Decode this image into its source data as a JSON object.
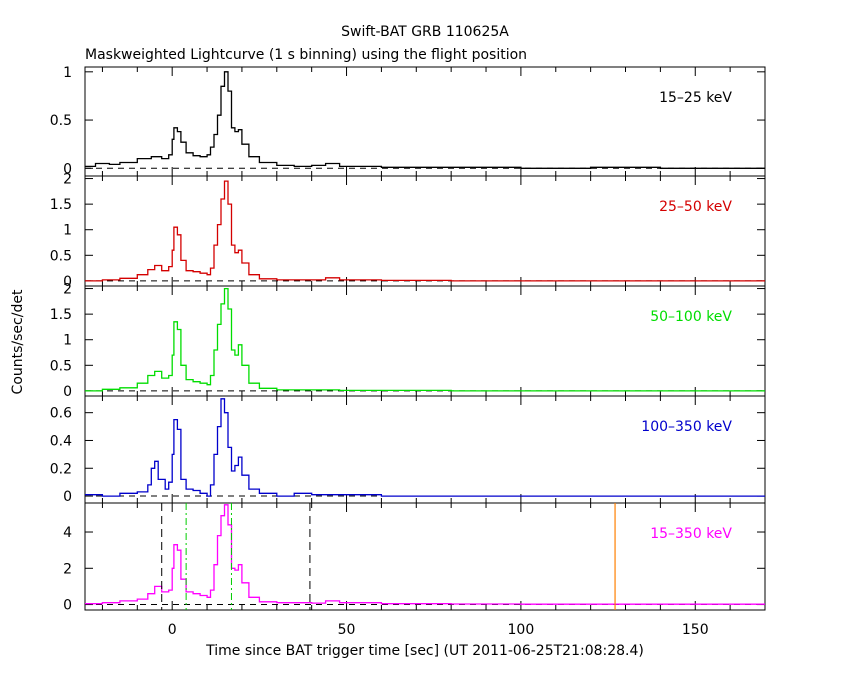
{
  "figure": {
    "title": "Swift-BAT GRB 110625A",
    "subtitle": "Maskweighted Lightcurve (1 s binning) using the flight position",
    "ylabel": "Counts/sec/det",
    "xlabel": "Time since BAT trigger time [sec] (UT 2011-06-25T21:08:28.4)"
  },
  "chart_data": {
    "type": "line",
    "x_range": [
      -25,
      170
    ],
    "x_ticks": [
      0,
      50,
      100,
      150
    ],
    "panels": [
      {
        "label": "15–25 keV",
        "color": "#000000",
        "ylim": [
          -0.08,
          1.05
        ],
        "y_ticks": [
          0,
          0.5,
          1
        ],
        "y_tick_labels": [
          "0",
          "0.5",
          "1"
        ],
        "series": {
          "points": [
            [
              -25,
              0.02
            ],
            [
              -22,
              0.05
            ],
            [
              -18,
              0.04
            ],
            [
              -15,
              0.06
            ],
            [
              -10,
              0.1
            ],
            [
              -6,
              0.12
            ],
            [
              -3,
              0.1
            ],
            [
              -1,
              0.14
            ],
            [
              0,
              0.3
            ],
            [
              0.5,
              0.42
            ],
            [
              1.5,
              0.38
            ],
            [
              2.5,
              0.27
            ],
            [
              4,
              0.16
            ],
            [
              6,
              0.13
            ],
            [
              8,
              0.12
            ],
            [
              10,
              0.14
            ],
            [
              11,
              0.22
            ],
            [
              12,
              0.35
            ],
            [
              13,
              0.55
            ],
            [
              14,
              0.85
            ],
            [
              15,
              1.0
            ],
            [
              16,
              0.8
            ],
            [
              17,
              0.42
            ],
            [
              18,
              0.38
            ],
            [
              19,
              0.4
            ],
            [
              20,
              0.25
            ],
            [
              22,
              0.12
            ],
            [
              25,
              0.06
            ],
            [
              30,
              0.03
            ],
            [
              35,
              0.02
            ],
            [
              40,
              0.03
            ],
            [
              44,
              0.05
            ],
            [
              48,
              0.02
            ],
            [
              60,
              0.01
            ],
            [
              80,
              0.01
            ],
            [
              100,
              0.0
            ],
            [
              120,
              0.01
            ],
            [
              140,
              0.0
            ],
            [
              170,
              0.0
            ]
          ]
        }
      },
      {
        "label": "25–50 keV",
        "color": "#d40000",
        "ylim": [
          -0.1,
          2.05
        ],
        "y_ticks": [
          0,
          0.5,
          1,
          1.5,
          2
        ],
        "y_tick_labels": [
          "0",
          "0.5",
          "1",
          "1.5",
          "2"
        ],
        "series": {
          "points": [
            [
              -25,
              0.0
            ],
            [
              -20,
              0.02
            ],
            [
              -15,
              0.05
            ],
            [
              -10,
              0.12
            ],
            [
              -7,
              0.22
            ],
            [
              -5,
              0.3
            ],
            [
              -3,
              0.2
            ],
            [
              -1,
              0.28
            ],
            [
              0,
              0.6
            ],
            [
              0.5,
              1.05
            ],
            [
              1.5,
              0.9
            ],
            [
              2.5,
              0.4
            ],
            [
              4,
              0.2
            ],
            [
              6,
              0.18
            ],
            [
              8,
              0.15
            ],
            [
              10,
              0.12
            ],
            [
              11,
              0.25
            ],
            [
              12,
              0.7
            ],
            [
              13,
              1.1
            ],
            [
              14,
              1.6
            ],
            [
              15,
              1.95
            ],
            [
              16,
              1.5
            ],
            [
              17,
              0.7
            ],
            [
              18,
              0.55
            ],
            [
              19,
              0.6
            ],
            [
              20,
              0.35
            ],
            [
              22,
              0.12
            ],
            [
              25,
              0.04
            ],
            [
              30,
              0.02
            ],
            [
              40,
              0.02
            ],
            [
              44,
              0.06
            ],
            [
              48,
              0.02
            ],
            [
              60,
              0.01
            ],
            [
              80,
              0.0
            ],
            [
              100,
              0.0
            ],
            [
              120,
              0.0
            ],
            [
              140,
              0.0
            ],
            [
              170,
              0.0
            ]
          ]
        }
      },
      {
        "label": "50–100 keV",
        "color": "#00dd00",
        "ylim": [
          -0.1,
          2.05
        ],
        "y_ticks": [
          0,
          0.5,
          1,
          1.5,
          2
        ],
        "y_tick_labels": [
          "0",
          "0.5",
          "1",
          "1.5",
          "2"
        ],
        "series": {
          "points": [
            [
              -25,
              0.0
            ],
            [
              -20,
              0.03
            ],
            [
              -15,
              0.06
            ],
            [
              -10,
              0.15
            ],
            [
              -7,
              0.3
            ],
            [
              -5,
              0.38
            ],
            [
              -3,
              0.25
            ],
            [
              -1,
              0.3
            ],
            [
              0,
              0.7
            ],
            [
              0.5,
              1.35
            ],
            [
              1.5,
              1.2
            ],
            [
              2.5,
              0.5
            ],
            [
              4,
              0.22
            ],
            [
              6,
              0.18
            ],
            [
              8,
              0.15
            ],
            [
              10,
              0.12
            ],
            [
              11,
              0.3
            ],
            [
              12,
              0.8
            ],
            [
              13,
              1.3
            ],
            [
              14,
              1.7
            ],
            [
              15,
              2.0
            ],
            [
              16,
              1.6
            ],
            [
              17,
              0.8
            ],
            [
              18,
              0.7
            ],
            [
              19,
              0.9
            ],
            [
              20,
              0.5
            ],
            [
              22,
              0.15
            ],
            [
              25,
              0.05
            ],
            [
              30,
              0.02
            ],
            [
              40,
              0.02
            ],
            [
              48,
              0.01
            ],
            [
              60,
              0.01
            ],
            [
              80,
              0.0
            ],
            [
              100,
              0.0
            ],
            [
              120,
              0.0
            ],
            [
              140,
              0.0
            ],
            [
              170,
              0.0
            ]
          ]
        }
      },
      {
        "label": "100–350 keV",
        "color": "#0000cc",
        "ylim": [
          -0.05,
          0.72
        ],
        "y_ticks": [
          0,
          0.2,
          0.4,
          0.6
        ],
        "y_tick_labels": [
          "0",
          "0.2",
          "0.4",
          "0.6"
        ],
        "series": {
          "points": [
            [
              -25,
              0.01
            ],
            [
              -20,
              0.0
            ],
            [
              -15,
              0.02
            ],
            [
              -10,
              0.03
            ],
            [
              -7,
              0.08
            ],
            [
              -6,
              0.2
            ],
            [
              -5,
              0.25
            ],
            [
              -4,
              0.12
            ],
            [
              -2,
              0.05
            ],
            [
              -1,
              0.1
            ],
            [
              0,
              0.3
            ],
            [
              0.5,
              0.55
            ],
            [
              1.5,
              0.48
            ],
            [
              2.5,
              0.12
            ],
            [
              4,
              0.05
            ],
            [
              6,
              0.04
            ],
            [
              8,
              0.02
            ],
            [
              10,
              0.0
            ],
            [
              11,
              0.08
            ],
            [
              12,
              0.3
            ],
            [
              13,
              0.5
            ],
            [
              14,
              0.7
            ],
            [
              15,
              0.6
            ],
            [
              16,
              0.35
            ],
            [
              17,
              0.18
            ],
            [
              18,
              0.22
            ],
            [
              19,
              0.28
            ],
            [
              20,
              0.15
            ],
            [
              22,
              0.05
            ],
            [
              25,
              0.02
            ],
            [
              30,
              0.0
            ],
            [
              35,
              0.02
            ],
            [
              40,
              0.01
            ],
            [
              50,
              0.01
            ],
            [
              60,
              0.0
            ],
            [
              80,
              0.0
            ],
            [
              100,
              0.0
            ],
            [
              120,
              0.0
            ],
            [
              140,
              0.0
            ],
            [
              170,
              0.0
            ]
          ]
        }
      },
      {
        "label": "15–350 keV",
        "color": "#ff00ff",
        "ylim": [
          -0.3,
          5.6
        ],
        "y_ticks": [
          0,
          2,
          4
        ],
        "y_tick_labels": [
          "0",
          "2",
          "4"
        ],
        "series": {
          "points": [
            [
              -25,
              0.05
            ],
            [
              -20,
              0.1
            ],
            [
              -15,
              0.2
            ],
            [
              -10,
              0.3
            ],
            [
              -7,
              0.6
            ],
            [
              -5,
              1.0
            ],
            [
              -3,
              0.7
            ],
            [
              -1,
              0.8
            ],
            [
              0,
              2.0
            ],
            [
              0.5,
              3.3
            ],
            [
              1.5,
              3.0
            ],
            [
              2.5,
              1.4
            ],
            [
              4,
              0.7
            ],
            [
              6,
              0.6
            ],
            [
              8,
              0.5
            ],
            [
              10,
              0.4
            ],
            [
              11,
              0.8
            ],
            [
              12,
              2.2
            ],
            [
              13,
              3.8
            ],
            [
              14,
              4.9
            ],
            [
              15,
              5.5
            ],
            [
              16,
              4.4
            ],
            [
              17,
              2.0
            ],
            [
              18,
              1.9
            ],
            [
              19,
              2.2
            ],
            [
              20,
              1.2
            ],
            [
              22,
              0.4
            ],
            [
              25,
              0.15
            ],
            [
              30,
              0.1
            ],
            [
              40,
              0.08
            ],
            [
              44,
              0.2
            ],
            [
              48,
              0.1
            ],
            [
              60,
              0.05
            ],
            [
              80,
              0.03
            ],
            [
              100,
              0.02
            ],
            [
              120,
              0.02
            ],
            [
              140,
              0.02
            ],
            [
              170,
              0.02
            ]
          ]
        },
        "markers": {
          "black_dashed_x": [
            -3,
            39.5
          ],
          "green_dashdot_x": [
            4,
            17
          ],
          "orange_solid_x": [
            127
          ]
        }
      }
    ]
  }
}
